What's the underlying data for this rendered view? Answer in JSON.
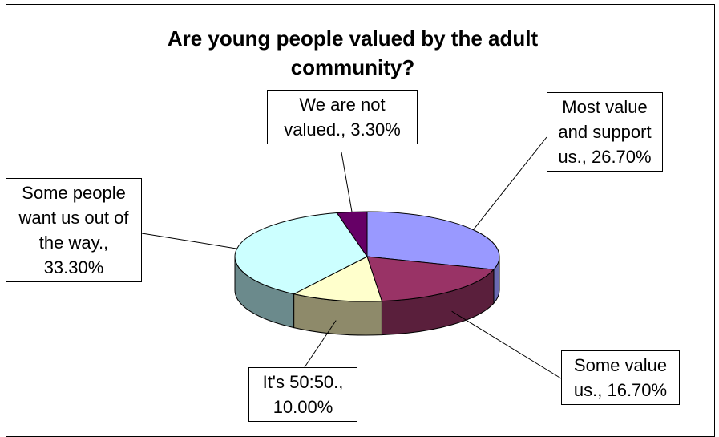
{
  "chart_data": {
    "type": "pie",
    "title": "Are young people valued by the adult community?",
    "slices": [
      {
        "name": "Most value and support us.",
        "value": 26.7,
        "label_lines": [
          "Most value",
          "and support",
          "us., 26.70%"
        ],
        "color": "#9999ff",
        "side_color": "#6a6ab2"
      },
      {
        "name": "Some value us.",
        "value": 16.7,
        "label_lines": [
          "Some value",
          "us., 16.70%"
        ],
        "color": "#993366",
        "side_color": "#5a1f3c"
      },
      {
        "name": "It's 50:50.",
        "value": 10.0,
        "label_lines": [
          "It's 50:50.,",
          "10.00%"
        ],
        "color": "#ffffcc",
        "side_color": "#8e8a6a"
      },
      {
        "name": "Some people want us out of the way.",
        "value": 33.3,
        "label_lines": [
          "Some people",
          "want us out of",
          "the way.,",
          "33.30%"
        ],
        "color": "#ccffff",
        "side_color": "#6b8a8c"
      },
      {
        "name": "We are not valued.",
        "value": 3.3,
        "label_lines": [
          "We are not",
          "valued., 3.30%"
        ],
        "color": "#660066",
        "side_color": "#3a003a"
      }
    ]
  }
}
